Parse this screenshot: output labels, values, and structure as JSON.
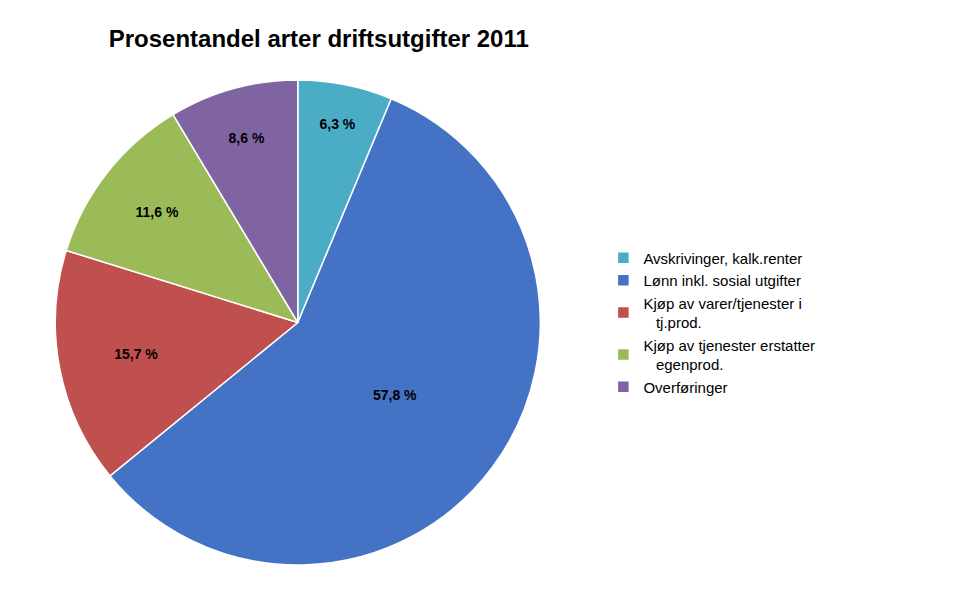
{
  "chart_data": {
    "type": "pie",
    "title": "Prosentandel arter driftsutgifter 2011",
    "categories": [
      "Avskrivinger, kalk.renter",
      "Lønn inkl. sosial utgifter",
      "Kjøp av varer/tjenester i\n   tj.prod.",
      "Kjøp av tjenester erstatter\n   egenprod.",
      "Overføringer"
    ],
    "values": [
      6.3,
      57.8,
      15.7,
      11.6,
      8.6
    ],
    "value_labels": [
      "6,3 %",
      "57,8 %",
      "15,7 %",
      "11,6 %",
      "8,6 %"
    ],
    "data_labels": true,
    "colors": [
      "#4BACC6",
      "#4472C4",
      "#C0504D",
      "#9BBB59",
      "#8064A2"
    ],
    "legend": "right"
  }
}
